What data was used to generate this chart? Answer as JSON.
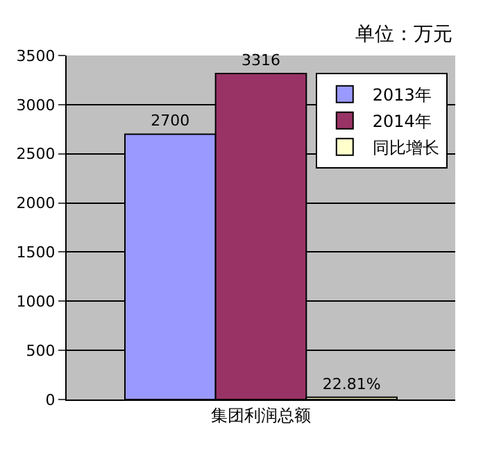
{
  "chart_data": {
    "type": "bar",
    "categories": [
      "集团利润总额"
    ],
    "series": [
      {
        "name": "2013年",
        "color": "#9999ff",
        "values": [
          2700
        ],
        "value_labels": [
          "2700"
        ]
      },
      {
        "name": "2014年",
        "color": "#993366",
        "values": [
          3316
        ],
        "value_labels": [
          "3316"
        ]
      },
      {
        "name": "同比增长",
        "color": "#ffffcc",
        "values": [
          22.81
        ],
        "value_labels": [
          "22.81%"
        ]
      }
    ],
    "annotations": [
      "单位：万元"
    ],
    "ylim": [
      0,
      3500
    ],
    "yticks": [
      0,
      500,
      1000,
      1500,
      2000,
      2500,
      3000,
      3500
    ],
    "grid": "y",
    "legend": "top right"
  }
}
